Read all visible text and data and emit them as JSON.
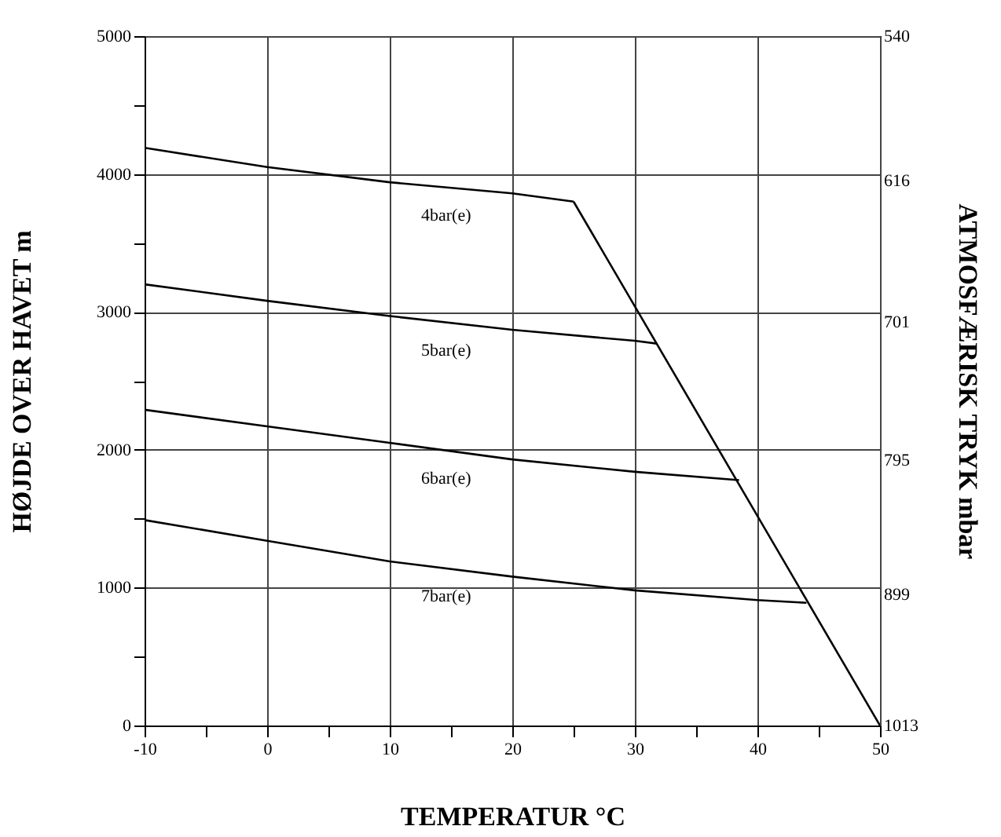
{
  "chart_data": {
    "type": "line",
    "xlabel": "TEMPERATUR °C",
    "ylabel": "HØJDE OVER HAVET m",
    "y2label": "ATMOSFÆRISK TRYK mbar",
    "xlim": [
      -10,
      50
    ],
    "xticks": [
      -10,
      {
        "value": -5,
        "label": null
      },
      0,
      {
        "value": 5,
        "label": null
      },
      10,
      {
        "value": 15,
        "label": null
      },
      20,
      {
        "value": 25,
        "label": null
      },
      30,
      {
        "value": 35,
        "label": null
      },
      40,
      {
        "value": 45,
        "label": null
      },
      50
    ],
    "ylim": [
      0,
      5000
    ],
    "yticks": [
      0,
      {
        "value": 500,
        "label": null
      },
      1000,
      {
        "value": 1500,
        "label": null
      },
      2000,
      {
        "value": 2500,
        "label": null
      },
      3000,
      {
        "value": 3500,
        "label": null
      },
      4000,
      {
        "value": 4500,
        "label": null
      },
      5000
    ],
    "y2lim": [
      1013,
      540
    ],
    "y2ticks": [
      1013,
      899,
      795,
      701,
      616,
      540
    ],
    "log": "y2",
    "grid": true,
    "line_style": "solid",
    "series": [
      {
        "name": "4bar(e)",
        "color": "#000000",
        "x": [
          -10,
          0,
          10,
          20,
          25
        ],
        "values": [
          4190,
          4050,
          3940,
          3860,
          3800
        ]
      },
      {
        "name": "5bar(e)",
        "color": "#000000",
        "x": [
          -10,
          0,
          10,
          20,
          30,
          31.8
        ],
        "values": [
          3200,
          3080,
          2970,
          2870,
          2790,
          2770
        ]
      },
      {
        "name": "6bar(e)",
        "color": "#000000",
        "x": [
          -10,
          0,
          10,
          20,
          30,
          38.5
        ],
        "values": [
          2290,
          2170,
          2050,
          1930,
          1840,
          1780
        ]
      },
      {
        "name": "7bar(e)",
        "color": "#000000",
        "x": [
          -10,
          0,
          10,
          20,
          30,
          40,
          44
        ],
        "values": [
          1490,
          1340,
          1190,
          1080,
          980,
          910,
          890
        ]
      },
      {
        "color": "#000000",
        "x": [
          25,
          50
        ],
        "values": [
          3800,
          0
        ]
      }
    ]
  }
}
